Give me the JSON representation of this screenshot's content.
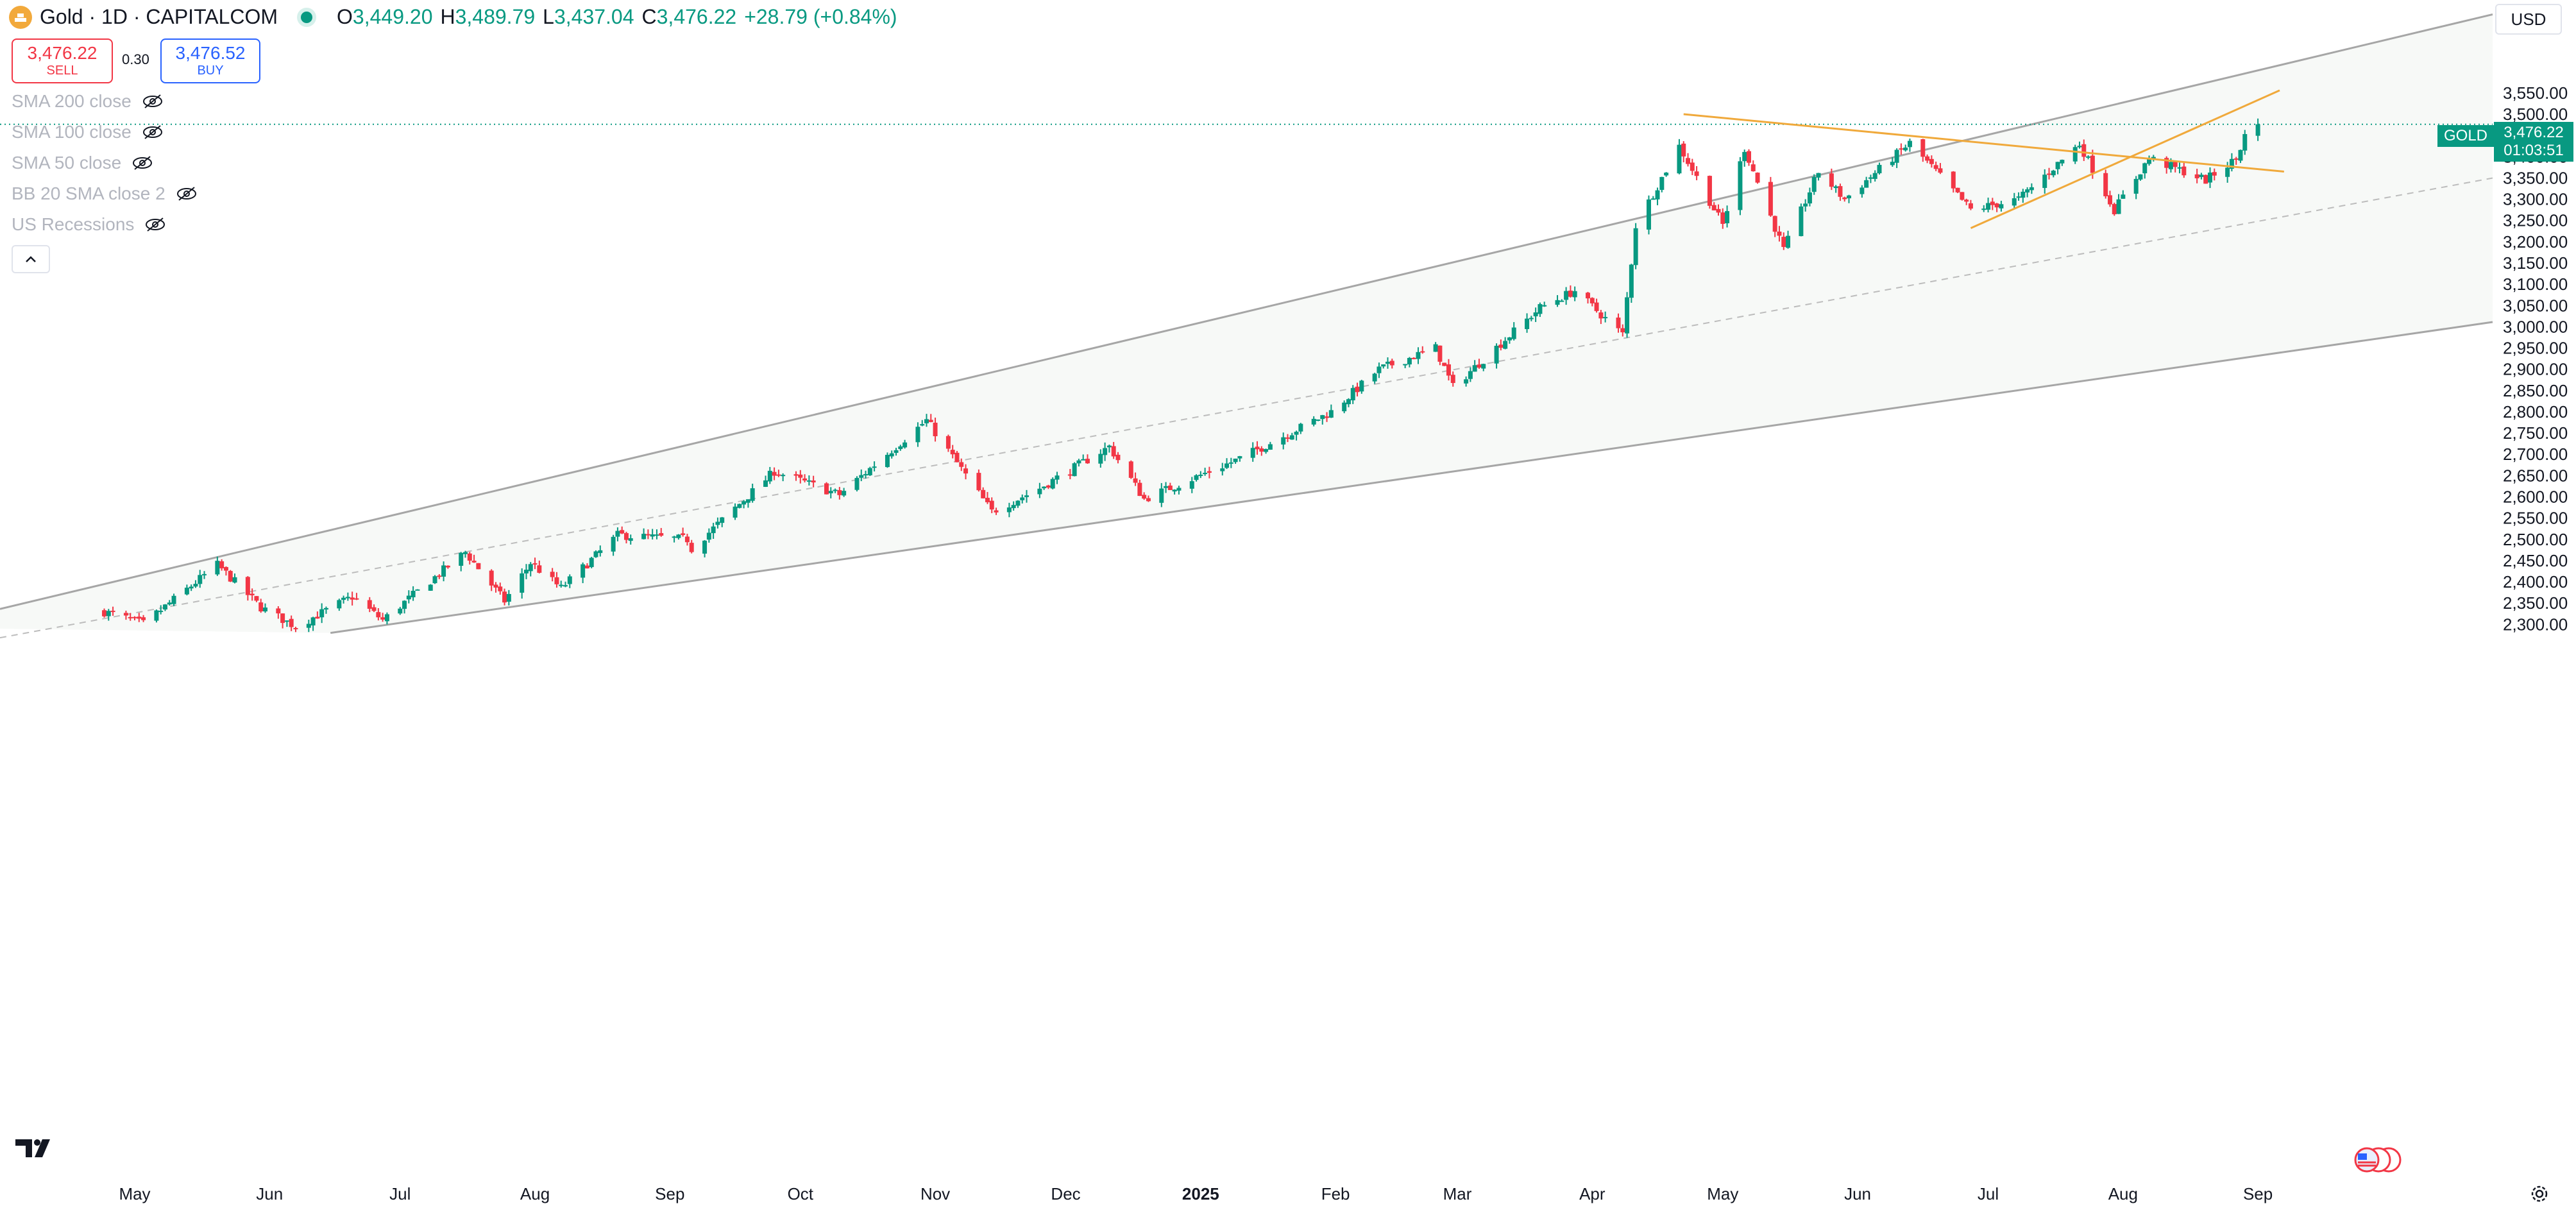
{
  "header": {
    "symbol": "Gold · 1D · CAPITALCOM",
    "open_label": "O",
    "open": "3,449.20",
    "high_label": "H",
    "high": "3,489.79",
    "low_label": "L",
    "low": "3,437.04",
    "close_label": "C",
    "close": "3,476.22",
    "change": "+28.79 (+0.84%)"
  },
  "trade": {
    "sell_price": "3,476.22",
    "sell_label": "SELL",
    "spread": "0.30",
    "buy_price": "3,476.52",
    "buy_label": "BUY"
  },
  "indicators": [
    {
      "label": "SMA 200 close"
    },
    {
      "label": "SMA 100 close"
    },
    {
      "label": "SMA 50 close"
    },
    {
      "label": "BB 20 SMA close 2"
    },
    {
      "label": "US Recessions"
    }
  ],
  "currency": "USD",
  "price_tag": {
    "symbol": "GOLD",
    "price": "3,476.22",
    "countdown": "01:03:51"
  },
  "colors": {
    "up": "#089981",
    "down": "#f23645",
    "channel": "#a6a6a6",
    "trend": "#f0a93b",
    "fill": "#f7f9f7"
  },
  "chart_data": {
    "type": "candlestick",
    "y_ticks": [
      "3,550.00",
      "3,500.00",
      "3,450.00",
      "3,400.00",
      "3,350.00",
      "3,300.00",
      "3,250.00",
      "3,200.00",
      "3,150.00",
      "3,100.00",
      "3,050.00",
      "3,000.00",
      "2,950.00",
      "2,900.00",
      "2,850.00",
      "2,800.00",
      "2,750.00",
      "2,700.00",
      "2,650.00",
      "2,600.00",
      "2,550.00",
      "2,500.00",
      "2,450.00",
      "2,400.00",
      "2,350.00",
      "2,300.00"
    ],
    "y_tick_values": [
      3550,
      3500,
      3450,
      3400,
      3350,
      3300,
      3250,
      3200,
      3150,
      3100,
      3050,
      3000,
      2950,
      2900,
      2850,
      2800,
      2750,
      2700,
      2650,
      2600,
      2550,
      2500,
      2450,
      2400,
      2350,
      2300
    ],
    "x_ticks": [
      "May",
      "Jun",
      "Jul",
      "Aug",
      "Sep",
      "Oct",
      "Nov",
      "Dec",
      "2025",
      "Feb",
      "Mar",
      "Apr",
      "May",
      "Jun",
      "Jul",
      "Aug",
      "Sep"
    ],
    "x_tick_dates": [
      "2024-05-01",
      "2024-06-01",
      "2024-07-01",
      "2024-08-01",
      "2024-09-01",
      "2024-10-01",
      "2024-11-01",
      "2024-12-01",
      "2025-01-01",
      "2025-02-01",
      "2025-03-01",
      "2025-04-01",
      "2025-05-01",
      "2025-06-01",
      "2025-07-01",
      "2025-08-01",
      "2025-09-01"
    ],
    "last_price": 3476.22,
    "anchors": [
      [
        "2024-04-24",
        2330
      ],
      [
        "2024-05-03",
        2301
      ],
      [
        "2024-05-20",
        2440
      ],
      [
        "2024-05-30",
        2340
      ],
      [
        "2024-06-07",
        2295
      ],
      [
        "2024-06-20",
        2365
      ],
      [
        "2024-06-27",
        2310
      ],
      [
        "2024-07-16",
        2470
      ],
      [
        "2024-07-25",
        2355
      ],
      [
        "2024-07-31",
        2445
      ],
      [
        "2024-08-07",
        2385
      ],
      [
        "2024-08-20",
        2510
      ],
      [
        "2024-09-05",
        2500
      ],
      [
        "2024-09-06",
        2478
      ],
      [
        "2024-09-25",
        2660
      ],
      [
        "2024-10-10",
        2605
      ],
      [
        "2024-10-30",
        2780
      ],
      [
        "2024-11-14",
        2565
      ],
      [
        "2024-11-25",
        2620
      ],
      [
        "2024-12-11",
        2718
      ],
      [
        "2024-12-19",
        2595
      ],
      [
        "2025-01-10",
        2690
      ],
      [
        "2025-01-31",
        2800
      ],
      [
        "2025-02-11",
        2900
      ],
      [
        "2025-02-24",
        2950
      ],
      [
        "2025-02-28",
        2858
      ],
      [
        "2025-03-20",
        3045
      ],
      [
        "2025-03-28",
        3085
      ],
      [
        "2025-04-08",
        2982
      ],
      [
        "2025-04-11",
        3238
      ],
      [
        "2025-04-21",
        3425
      ],
      [
        "2025-05-01",
        3240
      ],
      [
        "2025-05-06",
        3420
      ],
      [
        "2025-05-15",
        3180
      ],
      [
        "2025-05-23",
        3365
      ],
      [
        "2025-05-29",
        3300
      ],
      [
        "2025-06-13",
        3432
      ],
      [
        "2025-06-27",
        3275
      ],
      [
        "2025-07-08",
        3300
      ],
      [
        "2025-07-22",
        3430
      ],
      [
        "2025-07-30",
        3275
      ],
      [
        "2025-08-07",
        3397
      ],
      [
        "2025-08-20",
        3345
      ],
      [
        "2025-08-27",
        3395
      ],
      [
        "2025-08-29",
        3449
      ],
      [
        "2025-09-01",
        3476.22
      ]
    ],
    "channel": {
      "upper": [
        [
          "2024-04-22",
          2390
        ],
        [
          "2025-09-10",
          3625
        ]
      ],
      "lower": [
        [
          "2024-06-15",
          2280
        ],
        [
          "2025-09-10",
          2945
        ]
      ],
      "middle": [
        [
          "2024-04-22",
          2310
        ],
        [
          "2025-09-10",
          3265
        ]
      ]
    },
    "trendlines": [
      {
        "from": [
          "2025-04-22",
          3500
        ],
        "to": [
          "2025-09-07",
          3365
        ]
      },
      {
        "from": [
          "2025-06-27",
          3232
        ],
        "to": [
          "2025-09-06",
          3556
        ]
      }
    ]
  }
}
